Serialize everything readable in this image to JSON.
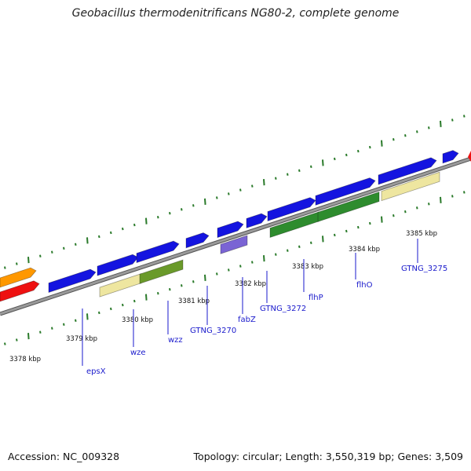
{
  "title": "Geobacillus thermodenitrificans NG80-2, complete genome",
  "footer": {
    "accession_label": "Accession:",
    "accession": "NC_009328",
    "topology_label": "Topology:",
    "topology": "circular",
    "length_label": "Length:",
    "length": "3,550,319 bp",
    "genes_label": "Genes:",
    "genes": "3,509",
    "sep": ";"
  },
  "colors": {
    "backbone": "#9a9a9a",
    "tick": "#2a7a2a",
    "blue_gene": "#1414e0",
    "purple_gene": "#7a64d4",
    "green_gene": "#2e8c2e",
    "olive_gene": "#6a9a2a",
    "pale_gene": "#eee6a0",
    "orange_gene": "#ff9800",
    "red_gene": "#ee1111",
    "label": "#1a1acc"
  },
  "scale_labels": [
    "3378 kbp",
    "3379 kbp",
    "3380 kbp",
    "3381 kbp",
    "3382 kbp",
    "3383 kbp",
    "3384 kbp",
    "3385 kbp"
  ],
  "gene_labels": [
    "epsX",
    "wze",
    "wzz",
    "GTNG_3270",
    "fabZ",
    "GTNG_3272",
    "flhP",
    "flhO",
    "GTNG_3275"
  ]
}
